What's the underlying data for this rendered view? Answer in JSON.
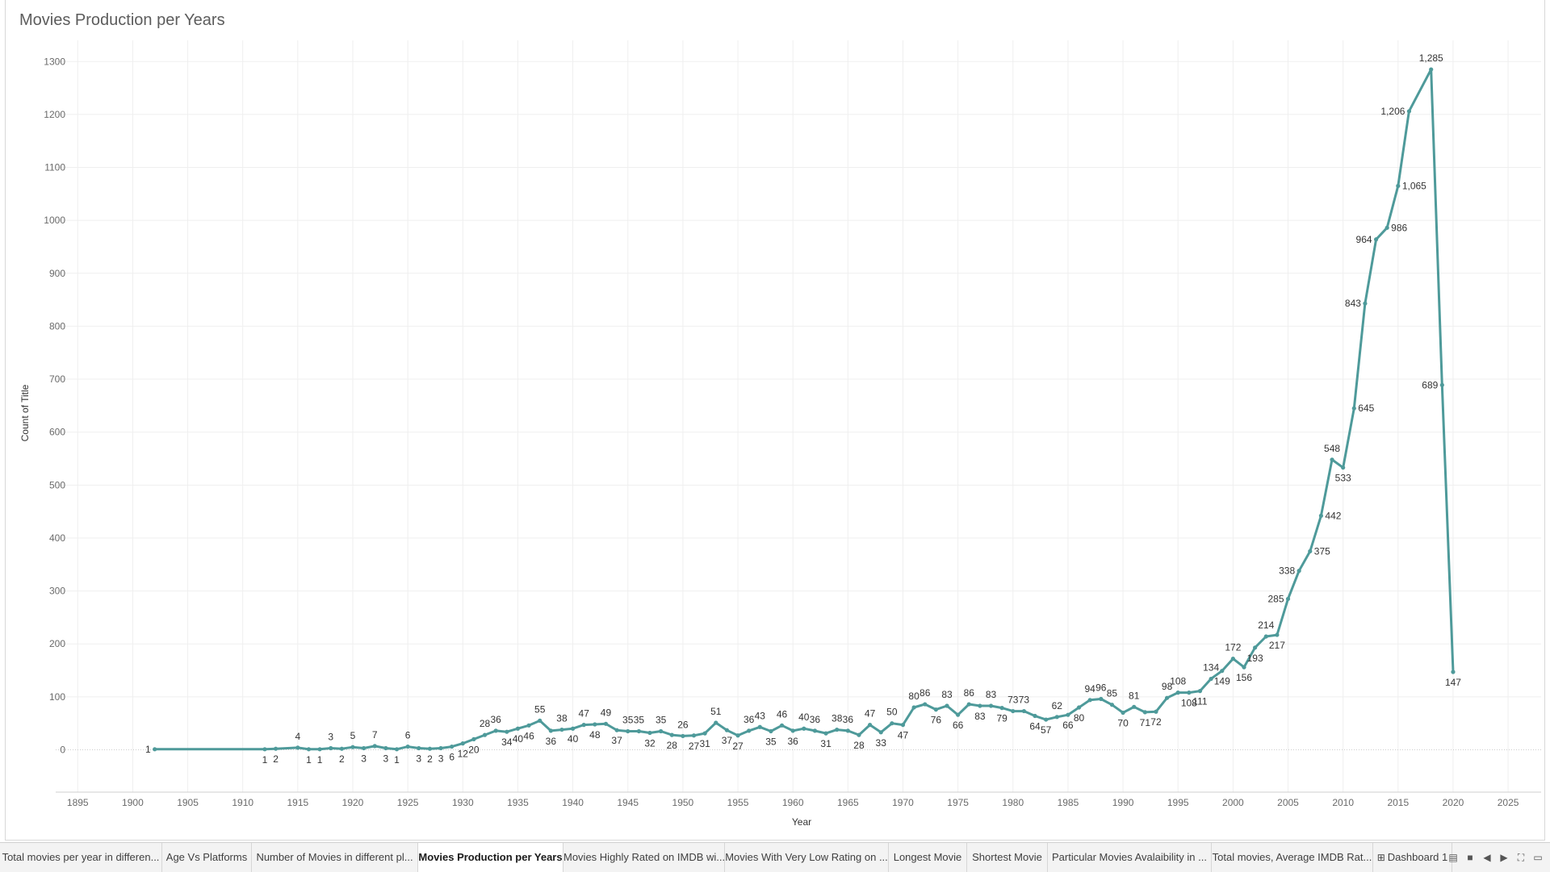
{
  "worksheet": {
    "title": "Movies Production per Years"
  },
  "chart_data": {
    "type": "line",
    "title": "Movies Production per Years",
    "xlabel": "Year",
    "ylabel": "Count of Title",
    "xlim": [
      1893,
      2028
    ],
    "ylim": [
      -80,
      1340
    ],
    "x_ticks": [
      1895,
      1900,
      1905,
      1910,
      1915,
      1920,
      1925,
      1930,
      1935,
      1940,
      1945,
      1950,
      1955,
      1960,
      1965,
      1970,
      1975,
      1980,
      1985,
      1990,
      1995,
      2000,
      2005,
      2010,
      2015,
      2020,
      2025
    ],
    "y_ticks": [
      0,
      100,
      200,
      300,
      400,
      500,
      600,
      700,
      800,
      900,
      1000,
      1100,
      1200,
      1300
    ],
    "grid": true,
    "line_color": "#4e9a9a",
    "series": [
      {
        "points": [
          {
            "x": 1902,
            "y": 1,
            "label": "1",
            "pos": "left"
          },
          {
            "x": 1912,
            "y": 1,
            "label": "1",
            "pos": "below"
          },
          {
            "x": 1913,
            "y": 2,
            "label": "2",
            "pos": "below"
          },
          {
            "x": 1915,
            "y": 4,
            "label": "4",
            "pos": "above"
          },
          {
            "x": 1916,
            "y": 1,
            "label": "1",
            "pos": "below"
          },
          {
            "x": 1917,
            "y": 1,
            "label": "1",
            "pos": "below"
          },
          {
            "x": 1918,
            "y": 3,
            "label": "3",
            "pos": "above"
          },
          {
            "x": 1919,
            "y": 2,
            "label": "2",
            "pos": "below"
          },
          {
            "x": 1920,
            "y": 5,
            "label": "5",
            "pos": "above"
          },
          {
            "x": 1921,
            "y": 3,
            "label": "3",
            "pos": "below"
          },
          {
            "x": 1922,
            "y": 7,
            "label": "7",
            "pos": "above"
          },
          {
            "x": 1923,
            "y": 3,
            "label": "3",
            "pos": "below"
          },
          {
            "x": 1924,
            "y": 1,
            "label": "1",
            "pos": "below"
          },
          {
            "x": 1925,
            "y": 6,
            "label": "6",
            "pos": "above"
          },
          {
            "x": 1926,
            "y": 3,
            "label": "3",
            "pos": "below"
          },
          {
            "x": 1927,
            "y": 2,
            "label": "2",
            "pos": "below"
          },
          {
            "x": 1928,
            "y": 3,
            "label": "3",
            "pos": "below"
          },
          {
            "x": 1929,
            "y": 6,
            "label": "6",
            "pos": "below"
          },
          {
            "x": 1930,
            "y": 12,
            "label": "12",
            "pos": "below"
          },
          {
            "x": 1931,
            "y": 20,
            "label": "20",
            "pos": "below"
          },
          {
            "x": 1932,
            "y": 28,
            "label": "28",
            "pos": "above"
          },
          {
            "x": 1933,
            "y": 36,
            "label": "36",
            "pos": "above"
          },
          {
            "x": 1934,
            "y": 34,
            "label": "34",
            "pos": "below"
          },
          {
            "x": 1935,
            "y": 40,
            "label": "40",
            "pos": "below"
          },
          {
            "x": 1936,
            "y": 46,
            "label": "46",
            "pos": "below"
          },
          {
            "x": 1937,
            "y": 55,
            "label": "55",
            "pos": "above"
          },
          {
            "x": 1938,
            "y": 36,
            "label": "36",
            "pos": "below"
          },
          {
            "x": 1939,
            "y": 38,
            "label": "38",
            "pos": "above"
          },
          {
            "x": 1940,
            "y": 40,
            "label": "40",
            "pos": "below"
          },
          {
            "x": 1941,
            "y": 47,
            "label": "47",
            "pos": "above"
          },
          {
            "x": 1942,
            "y": 48,
            "label": "48",
            "pos": "below"
          },
          {
            "x": 1943,
            "y": 49,
            "label": "49",
            "pos": "above"
          },
          {
            "x": 1944,
            "y": 37,
            "label": "37",
            "pos": "below"
          },
          {
            "x": 1945,
            "y": 35,
            "label": "35",
            "pos": "above"
          },
          {
            "x": 1946,
            "y": 35,
            "label": "35",
            "pos": "above"
          },
          {
            "x": 1947,
            "y": 32,
            "label": "32",
            "pos": "below"
          },
          {
            "x": 1948,
            "y": 35,
            "label": "35",
            "pos": "above"
          },
          {
            "x": 1949,
            "y": 28,
            "label": "28",
            "pos": "below"
          },
          {
            "x": 1950,
            "y": 26,
            "label": "26",
            "pos": "above"
          },
          {
            "x": 1951,
            "y": 27,
            "label": "27",
            "pos": "below"
          },
          {
            "x": 1952,
            "y": 31,
            "label": "31",
            "pos": "below"
          },
          {
            "x": 1953,
            "y": 51,
            "label": "51",
            "pos": "above"
          },
          {
            "x": 1954,
            "y": 37,
            "label": "37",
            "pos": "below"
          },
          {
            "x": 1955,
            "y": 27,
            "label": "27",
            "pos": "below"
          },
          {
            "x": 1956,
            "y": 36,
            "label": "36",
            "pos": "above"
          },
          {
            "x": 1957,
            "y": 43,
            "label": "43",
            "pos": "above"
          },
          {
            "x": 1958,
            "y": 35,
            "label": "35",
            "pos": "below"
          },
          {
            "x": 1959,
            "y": 46,
            "label": "46",
            "pos": "above"
          },
          {
            "x": 1960,
            "y": 36,
            "label": "36",
            "pos": "below"
          },
          {
            "x": 1961,
            "y": 40,
            "label": "40",
            "pos": "above"
          },
          {
            "x": 1962,
            "y": 36,
            "label": "36",
            "pos": "above"
          },
          {
            "x": 1963,
            "y": 31,
            "label": "31",
            "pos": "below"
          },
          {
            "x": 1964,
            "y": 38,
            "label": "38",
            "pos": "above"
          },
          {
            "x": 1965,
            "y": 36,
            "label": "36",
            "pos": "above"
          },
          {
            "x": 1966,
            "y": 28,
            "label": "28",
            "pos": "below"
          },
          {
            "x": 1967,
            "y": 47,
            "label": "47",
            "pos": "above"
          },
          {
            "x": 1968,
            "y": 33,
            "label": "33",
            "pos": "below"
          },
          {
            "x": 1969,
            "y": 50,
            "label": "50",
            "pos": "above"
          },
          {
            "x": 1970,
            "y": 47,
            "label": "47",
            "pos": "below"
          },
          {
            "x": 1971,
            "y": 80,
            "label": "80",
            "pos": "above"
          },
          {
            "x": 1972,
            "y": 86,
            "label": "86",
            "pos": "above"
          },
          {
            "x": 1973,
            "y": 76,
            "label": "76",
            "pos": "below"
          },
          {
            "x": 1974,
            "y": 83,
            "label": "83",
            "pos": "above"
          },
          {
            "x": 1975,
            "y": 66,
            "label": "66",
            "pos": "below"
          },
          {
            "x": 1976,
            "y": 86,
            "label": "86",
            "pos": "above"
          },
          {
            "x": 1977,
            "y": 83,
            "label": "83",
            "pos": "below"
          },
          {
            "x": 1978,
            "y": 83,
            "label": "83",
            "pos": "above"
          },
          {
            "x": 1979,
            "y": 79,
            "label": "79",
            "pos": "below"
          },
          {
            "x": 1980,
            "y": 73,
            "label": "73",
            "pos": "above"
          },
          {
            "x": 1981,
            "y": 73,
            "label": "73",
            "pos": "above"
          },
          {
            "x": 1982,
            "y": 64,
            "label": "64",
            "pos": "below"
          },
          {
            "x": 1983,
            "y": 57,
            "label": "57",
            "pos": "below"
          },
          {
            "x": 1984,
            "y": 62,
            "label": "62",
            "pos": "above"
          },
          {
            "x": 1985,
            "y": 66,
            "label": "66",
            "pos": "below"
          },
          {
            "x": 1986,
            "y": 80,
            "label": "80",
            "pos": "below"
          },
          {
            "x": 1987,
            "y": 94,
            "label": "94",
            "pos": "above"
          },
          {
            "x": 1988,
            "y": 96,
            "label": "96",
            "pos": "above"
          },
          {
            "x": 1989,
            "y": 85,
            "label": "85",
            "pos": "above"
          },
          {
            "x": 1990,
            "y": 70,
            "label": "70",
            "pos": "below"
          },
          {
            "x": 1991,
            "y": 81,
            "label": "81",
            "pos": "above"
          },
          {
            "x": 1992,
            "y": 71,
            "label": "71",
            "pos": "below"
          },
          {
            "x": 1993,
            "y": 72,
            "label": "72",
            "pos": "below"
          },
          {
            "x": 1994,
            "y": 98,
            "label": "98",
            "pos": "above"
          },
          {
            "x": 1995,
            "y": 108,
            "label": "108",
            "pos": "above"
          },
          {
            "x": 1996,
            "y": 108,
            "label": "108",
            "pos": "below"
          },
          {
            "x": 1997,
            "y": 111,
            "label": "111",
            "pos": "below"
          },
          {
            "x": 1998,
            "y": 134,
            "label": "134",
            "pos": "above"
          },
          {
            "x": 1999,
            "y": 149,
            "label": "149",
            "pos": "below"
          },
          {
            "x": 2000,
            "y": 172,
            "label": "172",
            "pos": "above"
          },
          {
            "x": 2001,
            "y": 156,
            "label": "156",
            "pos": "below"
          },
          {
            "x": 2002,
            "y": 193,
            "label": "193",
            "pos": "below"
          },
          {
            "x": 2003,
            "y": 214,
            "label": "214",
            "pos": "above"
          },
          {
            "x": 2004,
            "y": 217,
            "label": "217",
            "pos": "below"
          },
          {
            "x": 2005,
            "y": 285,
            "label": "285",
            "pos": "left"
          },
          {
            "x": 2006,
            "y": 338,
            "label": "338",
            "pos": "left"
          },
          {
            "x": 2007,
            "y": 375,
            "label": "375",
            "pos": "right"
          },
          {
            "x": 2008,
            "y": 442,
            "label": "442",
            "pos": "right"
          },
          {
            "x": 2009,
            "y": 548,
            "label": "548",
            "pos": "above"
          },
          {
            "x": 2010,
            "y": 533,
            "label": "533",
            "pos": "below"
          },
          {
            "x": 2011,
            "y": 645,
            "label": "645",
            "pos": "right"
          },
          {
            "x": 2012,
            "y": 843,
            "label": "843",
            "pos": "left"
          },
          {
            "x": 2013,
            "y": 964,
            "label": "964",
            "pos": "left"
          },
          {
            "x": 2014,
            "y": 986,
            "label": "986",
            "pos": "right"
          },
          {
            "x": 2015,
            "y": 1065,
            "label": "1,065",
            "pos": "right"
          },
          {
            "x": 2016,
            "y": 1206,
            "label": "1,206",
            "pos": "left"
          },
          {
            "x": 2018,
            "y": 1285,
            "label": "1,285",
            "pos": "above"
          },
          {
            "x": 2019,
            "y": 689,
            "label": "689",
            "pos": "left"
          },
          {
            "x": 2020,
            "y": 147,
            "label": "147",
            "pos": "below"
          }
        ]
      }
    ]
  },
  "tabs": [
    {
      "label": "Total movies per year in differen...",
      "active": false
    },
    {
      "label": "Age Vs Platforms",
      "active": false
    },
    {
      "label": "Number of Movies in different pl...",
      "active": false
    },
    {
      "label": "Movies Production per Years",
      "active": true
    },
    {
      "label": "Movies Highly Rated on IMDB wi...",
      "active": false
    },
    {
      "label": "Movies With Very Low Rating on ...",
      "active": false
    },
    {
      "label": "Longest Movie",
      "active": false
    },
    {
      "label": "Shortest Movie",
      "active": false
    },
    {
      "label": "Particular Movies Avalaibility in ...",
      "active": false
    },
    {
      "label": "Total movies, Average IMDB Rat...",
      "active": false
    },
    {
      "label": "Dashboard 1",
      "active": false,
      "icon": "dashboard-icon"
    }
  ],
  "controls": [
    {
      "name": "filmstrip-view-icon",
      "glyph": "▤"
    },
    {
      "name": "tabs-view-icon",
      "glyph": "■"
    },
    {
      "name": "prev-sheet-icon",
      "glyph": "◀"
    },
    {
      "name": "next-sheet-icon",
      "glyph": "▶"
    },
    {
      "name": "fullscreen-icon",
      "glyph": "⛶"
    },
    {
      "name": "present-mode-icon",
      "glyph": "▭"
    }
  ]
}
